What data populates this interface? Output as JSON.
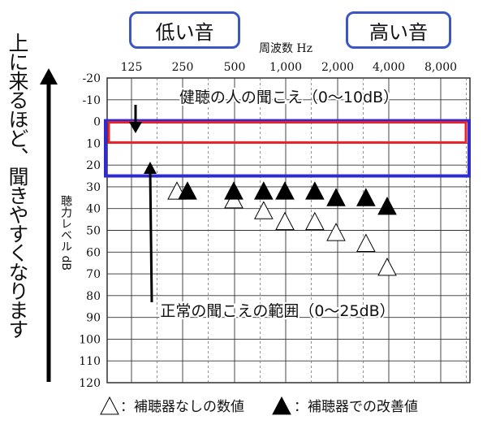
{
  "chart_data": {
    "type": "scatter",
    "title": "",
    "xlabel": "周波数 Hz",
    "ylabel": "聴力レベル dB",
    "x_categories": [
      "125",
      "250",
      "500",
      "1,000",
      "2,000",
      "4,000",
      "8,000"
    ],
    "ylim": [
      -20,
      120
    ],
    "y_ticks": [
      "-20",
      "-10",
      "0",
      "10",
      "20",
      "30",
      "40",
      "50",
      "60",
      "70",
      "80",
      "90",
      "100",
      "110",
      "120"
    ],
    "y_reversed": true,
    "grid": true,
    "series": [
      {
        "name": "補聴器なしの数値",
        "marker": "open-triangle",
        "points": [
          {
            "x": 250,
            "y": 32
          },
          {
            "x": 500,
            "y": 36
          },
          {
            "x": 750,
            "y": 41
          },
          {
            "x": 1000,
            "y": 46
          },
          {
            "x": 1500,
            "y": 46
          },
          {
            "x": 2000,
            "y": 51
          },
          {
            "x": 3000,
            "y": 56
          },
          {
            "x": 4000,
            "y": 67
          }
        ]
      },
      {
        "name": "補聴器での改善値",
        "marker": "filled-triangle",
        "points": [
          {
            "x": 250,
            "y": 32
          },
          {
            "x": 500,
            "y": 32
          },
          {
            "x": 750,
            "y": 32
          },
          {
            "x": 1000,
            "y": 32
          },
          {
            "x": 1500,
            "y": 32
          },
          {
            "x": 2000,
            "y": 35
          },
          {
            "x": 3000,
            "y": 35
          },
          {
            "x": 4000,
            "y": 39
          }
        ]
      }
    ],
    "bands": [
      {
        "label": "健聴の人の聞こえ（0〜10dB）",
        "from": 0,
        "to": 10,
        "color": "#e8242b"
      },
      {
        "label": "正常の聞こえの範囲（0〜25dB）",
        "from": 0,
        "to": 25,
        "color": "#2f2bd0"
      }
    ],
    "legend": {
      "open_label": "：補聴器なしの数値",
      "filled_label": "：補聴器での改善値",
      "placement": "bottom"
    }
  },
  "header": {
    "low_label": "低い音",
    "high_label": "高い音"
  },
  "side_label": "上に来るほど、聞きやすくなります"
}
